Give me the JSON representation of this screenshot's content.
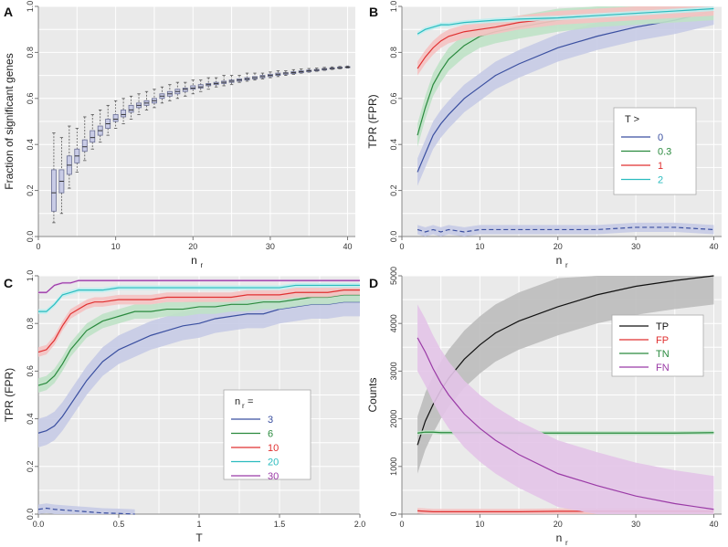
{
  "chart_data": [
    {
      "panel": "A",
      "type": "box",
      "xlabel_main": "n",
      "xlabel_sub": "r",
      "ylabel": "Fraction of significant genes",
      "xlim": [
        0,
        41
      ],
      "ylim": [
        0,
        1
      ],
      "xticks": [
        0,
        10,
        20,
        30,
        40
      ],
      "yticks": [
        0,
        0.2,
        0.4,
        0.6,
        0.8,
        1
      ],
      "ytick_labels": [
        "0.0",
        "0.2",
        "0.4",
        "0.6",
        "0.8",
        "1.0"
      ],
      "boxes": [
        {
          "x": 2,
          "lo": 0.06,
          "q1": 0.11,
          "med": 0.19,
          "q3": 0.29,
          "hi": 0.45
        },
        {
          "x": 3,
          "lo": 0.1,
          "q1": 0.19,
          "med": 0.24,
          "q3": 0.29,
          "hi": 0.43
        },
        {
          "x": 4,
          "lo": 0.21,
          "q1": 0.27,
          "med": 0.31,
          "q3": 0.35,
          "hi": 0.48
        },
        {
          "x": 5,
          "lo": 0.28,
          "q1": 0.32,
          "med": 0.35,
          "q3": 0.38,
          "hi": 0.47
        },
        {
          "x": 6,
          "lo": 0.33,
          "q1": 0.37,
          "med": 0.39,
          "q3": 0.42,
          "hi": 0.52
        },
        {
          "x": 7,
          "lo": 0.38,
          "q1": 0.41,
          "med": 0.43,
          "q3": 0.46,
          "hi": 0.53
        },
        {
          "x": 8,
          "lo": 0.41,
          "q1": 0.44,
          "med": 0.46,
          "q3": 0.48,
          "hi": 0.55
        },
        {
          "x": 9,
          "lo": 0.44,
          "q1": 0.47,
          "med": 0.49,
          "q3": 0.51,
          "hi": 0.57
        },
        {
          "x": 10,
          "lo": 0.47,
          "q1": 0.5,
          "med": 0.51,
          "q3": 0.53,
          "hi": 0.59
        },
        {
          "x": 11,
          "lo": 0.49,
          "q1": 0.52,
          "med": 0.53,
          "q3": 0.55,
          "hi": 0.6
        },
        {
          "x": 12,
          "lo": 0.51,
          "q1": 0.54,
          "med": 0.55,
          "q3": 0.57,
          "hi": 0.61
        },
        {
          "x": 13,
          "lo": 0.53,
          "q1": 0.56,
          "med": 0.57,
          "q3": 0.58,
          "hi": 0.62
        },
        {
          "x": 14,
          "lo": 0.55,
          "q1": 0.57,
          "med": 0.58,
          "q3": 0.59,
          "hi": 0.63
        },
        {
          "x": 15,
          "lo": 0.56,
          "q1": 0.58,
          "med": 0.59,
          "q3": 0.6,
          "hi": 0.64
        },
        {
          "x": 16,
          "lo": 0.58,
          "q1": 0.6,
          "med": 0.61,
          "q3": 0.62,
          "hi": 0.65
        },
        {
          "x": 17,
          "lo": 0.59,
          "q1": 0.61,
          "med": 0.62,
          "q3": 0.63,
          "hi": 0.66
        },
        {
          "x": 18,
          "lo": 0.6,
          "q1": 0.62,
          "med": 0.63,
          "q3": 0.64,
          "hi": 0.67
        },
        {
          "x": 19,
          "lo": 0.61,
          "q1": 0.63,
          "med": 0.64,
          "q3": 0.645,
          "hi": 0.67
        },
        {
          "x": 20,
          "lo": 0.62,
          "q1": 0.64,
          "med": 0.645,
          "q3": 0.655,
          "hi": 0.68
        },
        {
          "x": 21,
          "lo": 0.63,
          "q1": 0.645,
          "med": 0.65,
          "q3": 0.66,
          "hi": 0.68
        },
        {
          "x": 22,
          "lo": 0.64,
          "q1": 0.655,
          "med": 0.66,
          "q3": 0.665,
          "hi": 0.69
        },
        {
          "x": 23,
          "lo": 0.65,
          "q1": 0.66,
          "med": 0.665,
          "q3": 0.67,
          "hi": 0.69
        },
        {
          "x": 24,
          "lo": 0.655,
          "q1": 0.665,
          "med": 0.67,
          "q3": 0.675,
          "hi": 0.7
        },
        {
          "x": 25,
          "lo": 0.66,
          "q1": 0.67,
          "med": 0.675,
          "q3": 0.68,
          "hi": 0.7
        },
        {
          "x": 26,
          "lo": 0.67,
          "q1": 0.675,
          "med": 0.68,
          "q3": 0.685,
          "hi": 0.7
        },
        {
          "x": 27,
          "lo": 0.675,
          "q1": 0.68,
          "med": 0.685,
          "q3": 0.69,
          "hi": 0.71
        },
        {
          "x": 28,
          "lo": 0.68,
          "q1": 0.685,
          "med": 0.69,
          "q3": 0.695,
          "hi": 0.71
        },
        {
          "x": 29,
          "lo": 0.685,
          "q1": 0.69,
          "med": 0.695,
          "q3": 0.7,
          "hi": 0.71
        },
        {
          "x": 30,
          "lo": 0.69,
          "q1": 0.695,
          "med": 0.7,
          "q3": 0.705,
          "hi": 0.715
        },
        {
          "x": 31,
          "lo": 0.695,
          "q1": 0.7,
          "med": 0.705,
          "q3": 0.71,
          "hi": 0.72
        },
        {
          "x": 32,
          "lo": 0.7,
          "q1": 0.705,
          "med": 0.71,
          "q3": 0.712,
          "hi": 0.72
        },
        {
          "x": 33,
          "lo": 0.705,
          "q1": 0.708,
          "med": 0.712,
          "q3": 0.716,
          "hi": 0.725
        },
        {
          "x": 34,
          "lo": 0.71,
          "q1": 0.712,
          "med": 0.716,
          "q3": 0.72,
          "hi": 0.728
        },
        {
          "x": 35,
          "lo": 0.714,
          "q1": 0.716,
          "med": 0.72,
          "q3": 0.723,
          "hi": 0.73
        },
        {
          "x": 36,
          "lo": 0.718,
          "q1": 0.72,
          "med": 0.723,
          "q3": 0.726,
          "hi": 0.732
        },
        {
          "x": 37,
          "lo": 0.722,
          "q1": 0.724,
          "med": 0.727,
          "q3": 0.73,
          "hi": 0.735
        },
        {
          "x": 38,
          "lo": 0.726,
          "q1": 0.728,
          "med": 0.73,
          "q3": 0.733,
          "hi": 0.737
        },
        {
          "x": 39,
          "lo": 0.729,
          "q1": 0.731,
          "med": 0.733,
          "q3": 0.736,
          "hi": 0.739
        },
        {
          "x": 40,
          "lo": 0.732,
          "q1": 0.734,
          "med": 0.736,
          "q3": 0.738,
          "hi": 0.741
        }
      ]
    },
    {
      "panel": "B",
      "type": "line",
      "xlabel_main": "n",
      "xlabel_sub": "r",
      "ylabel": "TPR (FPR)",
      "xlim": [
        0,
        41
      ],
      "ylim": [
        0,
        1
      ],
      "xticks": [
        0,
        10,
        20,
        30,
        40
      ],
      "yticks": [
        0,
        0.2,
        0.4,
        0.6,
        0.8,
        1
      ],
      "ytick_labels": [
        "0.0",
        "0.2",
        "0.4",
        "0.6",
        "0.8",
        "1.0"
      ],
      "x": [
        2,
        3,
        4,
        5,
        6,
        8,
        10,
        12,
        15,
        20,
        25,
        30,
        35,
        40
      ],
      "legend_title": "T >",
      "series": [
        {
          "name": "0",
          "color": "#3a4fa0",
          "band": "#c7cbe6",
          "width": 0.06,
          "values": [
            0.28,
            0.36,
            0.44,
            0.49,
            0.53,
            0.6,
            0.65,
            0.7,
            0.75,
            0.82,
            0.87,
            0.91,
            0.94,
            0.98
          ]
        },
        {
          "name": "0.3",
          "color": "#2a8a3e",
          "band": "#bfe2c6",
          "width": 0.05,
          "values": [
            0.44,
            0.56,
            0.66,
            0.72,
            0.77,
            0.83,
            0.87,
            0.89,
            0.91,
            0.94,
            0.96,
            0.97,
            0.98,
            0.99
          ]
        },
        {
          "name": "1",
          "color": "#e03030",
          "band": "#f5c2c2",
          "width": 0.03,
          "values": [
            0.73,
            0.78,
            0.82,
            0.85,
            0.87,
            0.89,
            0.9,
            0.91,
            0.93,
            0.95,
            0.96,
            0.97,
            0.98,
            0.99
          ]
        },
        {
          "name": "2",
          "color": "#2bbcbf",
          "band": "#bfeef0",
          "width": 0.01,
          "values": [
            0.88,
            0.9,
            0.91,
            0.92,
            0.92,
            0.93,
            0.935,
            0.94,
            0.945,
            0.95,
            0.96,
            0.97,
            0.98,
            0.99
          ]
        }
      ],
      "fpr_series": {
        "color": "#3a4fa0",
        "band": "#c7cbe6",
        "x": [
          2,
          3,
          4,
          5,
          6,
          8,
          10,
          12,
          15,
          20,
          25,
          30,
          35,
          40
        ],
        "values": [
          0.03,
          0.02,
          0.03,
          0.02,
          0.03,
          0.02,
          0.03,
          0.03,
          0.03,
          0.03,
          0.03,
          0.04,
          0.04,
          0.03
        ]
      }
    },
    {
      "panel": "C",
      "type": "line",
      "xlabel_main": "T",
      "xlabel_sub": "",
      "ylabel": "TPR (FPR)",
      "xlim": [
        0,
        2
      ],
      "ylim": [
        0,
        1
      ],
      "xticks": [
        0,
        0.5,
        1,
        1.5,
        2
      ],
      "xtick_labels": [
        "0.0",
        "0.5",
        "1",
        "1.5",
        "2.0"
      ],
      "yticks": [
        0,
        0.2,
        0.4,
        0.6,
        0.8,
        1
      ],
      "ytick_labels": [
        "0.0",
        "0.2",
        "0.4",
        "0.6",
        "0.8",
        "1.0"
      ],
      "x": [
        0,
        0.05,
        0.1,
        0.15,
        0.2,
        0.25,
        0.3,
        0.35,
        0.4,
        0.5,
        0.6,
        0.7,
        0.8,
        0.9,
        1.0,
        1.1,
        1.2,
        1.3,
        1.4,
        1.5,
        1.6,
        1.7,
        1.8,
        1.9,
        2.0
      ],
      "legend_title": "n",
      "legend_title_sub": "r",
      "legend_title_suffix": " =",
      "series": [
        {
          "name": "3",
          "color": "#3a4fa0",
          "band": "#c7cbe6",
          "width": 0.06,
          "values": [
            0.34,
            0.35,
            0.37,
            0.41,
            0.46,
            0.51,
            0.56,
            0.6,
            0.64,
            0.69,
            0.72,
            0.75,
            0.77,
            0.79,
            0.8,
            0.82,
            0.83,
            0.84,
            0.84,
            0.86,
            0.87,
            0.88,
            0.88,
            0.89,
            0.89
          ]
        },
        {
          "name": "6",
          "color": "#2a8a3e",
          "band": "#bfe2c6",
          "width": 0.03,
          "values": [
            0.54,
            0.55,
            0.58,
            0.63,
            0.69,
            0.73,
            0.77,
            0.79,
            0.81,
            0.83,
            0.85,
            0.85,
            0.86,
            0.86,
            0.87,
            0.87,
            0.88,
            0.88,
            0.89,
            0.89,
            0.9,
            0.91,
            0.91,
            0.92,
            0.92
          ]
        },
        {
          "name": "10",
          "color": "#e03030",
          "band": "#f5c2c2",
          "width": 0.02,
          "values": [
            0.68,
            0.69,
            0.73,
            0.79,
            0.84,
            0.86,
            0.88,
            0.89,
            0.89,
            0.9,
            0.9,
            0.9,
            0.91,
            0.91,
            0.91,
            0.91,
            0.91,
            0.92,
            0.92,
            0.92,
            0.93,
            0.93,
            0.93,
            0.94,
            0.94
          ]
        },
        {
          "name": "20",
          "color": "#2bbcbf",
          "band": "#bfeef0",
          "width": 0.01,
          "values": [
            0.85,
            0.85,
            0.88,
            0.92,
            0.93,
            0.94,
            0.94,
            0.94,
            0.94,
            0.95,
            0.95,
            0.95,
            0.95,
            0.95,
            0.95,
            0.95,
            0.95,
            0.95,
            0.95,
            0.95,
            0.96,
            0.96,
            0.96,
            0.96,
            0.96
          ]
        },
        {
          "name": "30",
          "color": "#9a3aa6",
          "band": "#e3c4e8",
          "width": 0.005,
          "values": [
            0.93,
            0.93,
            0.96,
            0.97,
            0.97,
            0.98,
            0.98,
            0.98,
            0.98,
            0.98,
            0.98,
            0.98,
            0.98,
            0.98,
            0.98,
            0.98,
            0.98,
            0.98,
            0.98,
            0.98,
            0.98,
            0.98,
            0.98,
            0.98,
            0.98
          ]
        }
      ],
      "fpr_series": {
        "color": "#3a4fa0",
        "band": "#c7cbe6",
        "x": [
          0,
          0.05,
          0.1,
          0.2,
          0.3,
          0.4,
          0.5,
          0.6
        ],
        "values": [
          0.02,
          0.025,
          0.02,
          0.015,
          0.01,
          0.005,
          0.003,
          0.0
        ]
      }
    },
    {
      "panel": "D",
      "type": "line",
      "xlabel_main": "n",
      "xlabel_sub": "r",
      "ylabel": "Counts",
      "xlim": [
        0,
        41
      ],
      "ylim": [
        0,
        5000
      ],
      "xticks": [
        0,
        10,
        20,
        30,
        40
      ],
      "yticks": [
        0,
        1000,
        2000,
        3000,
        4000,
        5000
      ],
      "x": [
        2,
        3,
        4,
        5,
        6,
        7,
        8,
        10,
        12,
        15,
        20,
        25,
        30,
        35,
        40
      ],
      "series": [
        {
          "name": "TP",
          "color": "#111111",
          "band": "#bdbdbd",
          "width": 600,
          "values": [
            1450,
            1950,
            2300,
            2600,
            2850,
            3050,
            3250,
            3550,
            3800,
            4050,
            4350,
            4600,
            4780,
            4900,
            5000
          ]
        },
        {
          "name": "FP",
          "color": "#e03030",
          "band": "#f5c2c2",
          "width": 60,
          "values": [
            70,
            60,
            50,
            50,
            50,
            50,
            50,
            50,
            50,
            50,
            60,
            60,
            60,
            60,
            60
          ]
        },
        {
          "name": "TN",
          "color": "#2a8a3e",
          "band": "#bfe2c6",
          "width": 40,
          "values": [
            1700,
            1720,
            1720,
            1710,
            1710,
            1710,
            1710,
            1710,
            1705,
            1700,
            1700,
            1700,
            1700,
            1700,
            1710
          ]
        },
        {
          "name": "FN",
          "color": "#9a3aa6",
          "band": "#e3c4e8",
          "width": 700,
          "values": [
            3700,
            3400,
            3050,
            2750,
            2500,
            2300,
            2100,
            1800,
            1550,
            1250,
            850,
            600,
            380,
            220,
            100
          ]
        }
      ]
    }
  ]
}
